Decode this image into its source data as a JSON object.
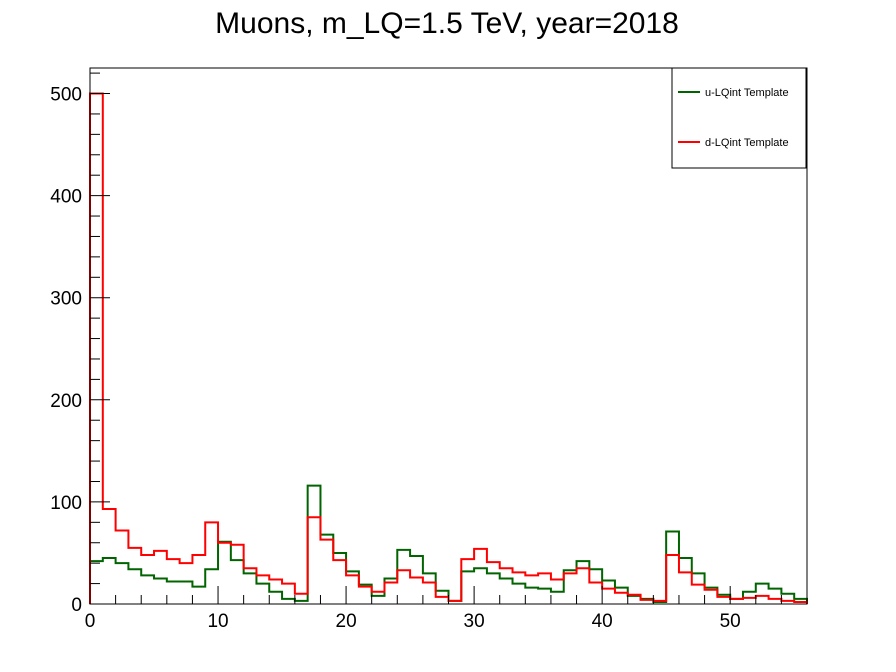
{
  "chart_data": {
    "type": "histogram-step",
    "title": "Muons, m_LQ=1.5 TeV, year=2018",
    "xlabel": "",
    "ylabel": "",
    "xlim": [
      0,
      56
    ],
    "ylim": [
      0,
      525
    ],
    "bin_width": 1,
    "x_ticks": [
      {
        "value": 0,
        "label": "0"
      },
      {
        "value": 10,
        "label": "10"
      },
      {
        "value": 20,
        "label": "20"
      },
      {
        "value": 30,
        "label": "30"
      },
      {
        "value": 40,
        "label": "40"
      },
      {
        "value": 50,
        "label": "50"
      }
    ],
    "y_ticks": [
      {
        "value": 0,
        "label": "0"
      },
      {
        "value": 100,
        "label": "100"
      },
      {
        "value": 200,
        "label": "200"
      },
      {
        "value": 300,
        "label": "300"
      },
      {
        "value": 400,
        "label": "400"
      },
      {
        "value": 500,
        "label": "500"
      }
    ],
    "legend_position": "top-right",
    "series": [
      {
        "name": "u-LQint Template",
        "color": "#006400",
        "values": [
          42,
          45,
          40,
          34,
          28,
          25,
          22,
          22,
          17,
          34,
          61,
          43,
          30,
          20,
          12,
          5,
          3,
          116,
          68,
          50,
          32,
          19,
          8,
          25,
          53,
          47,
          30,
          13,
          3,
          32,
          35,
          30,
          25,
          20,
          16,
          15,
          12,
          33,
          42,
          34,
          23,
          16,
          8,
          5,
          2,
          71,
          45,
          30,
          16,
          9,
          5,
          12,
          20,
          15,
          10,
          5
        ]
      },
      {
        "name": "d-LQint Template",
        "color": "#ff0000",
        "values": [
          500,
          93,
          72,
          55,
          48,
          52,
          44,
          40,
          48,
          80,
          60,
          58,
          35,
          28,
          24,
          20,
          10,
          85,
          63,
          43,
          28,
          17,
          12,
          21,
          33,
          26,
          21,
          7,
          3,
          44,
          54,
          41,
          35,
          31,
          28,
          30,
          24,
          30,
          35,
          21,
          15,
          11,
          9,
          4,
          3,
          48,
          31,
          19,
          14,
          7,
          5,
          6,
          8,
          5,
          3,
          2
        ]
      }
    ]
  }
}
